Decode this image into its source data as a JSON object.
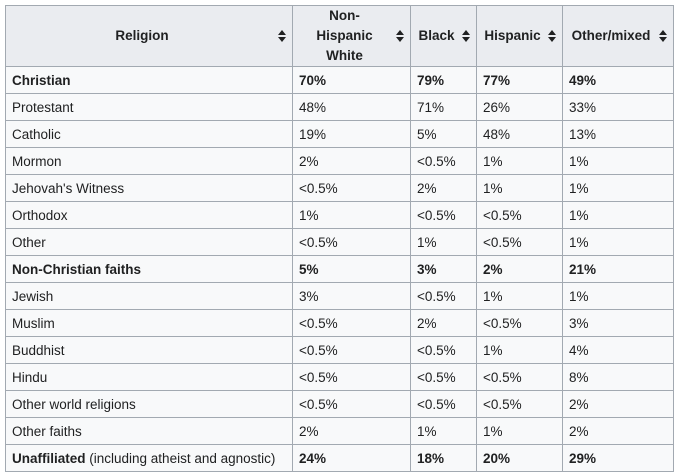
{
  "table": {
    "headers": [
      {
        "label": "Religion"
      },
      {
        "label": "Non-Hispanic White"
      },
      {
        "label": "Black"
      },
      {
        "label": "Hispanic"
      },
      {
        "label": "Other/mixed"
      }
    ],
    "rows": [
      {
        "religion": "Christian",
        "religion_note": "",
        "white": "70%",
        "black": "79%",
        "hispanic": "77%",
        "other": "49%",
        "bold": true
      },
      {
        "religion": "Protestant",
        "religion_note": "",
        "white": "48%",
        "black": "71%",
        "hispanic": "26%",
        "other": "33%",
        "bold": false
      },
      {
        "religion": "Catholic",
        "religion_note": "",
        "white": "19%",
        "black": "5%",
        "hispanic": "48%",
        "other": "13%",
        "bold": false
      },
      {
        "religion": "Mormon",
        "religion_note": "",
        "white": "2%",
        "black": "<0.5%",
        "hispanic": "1%",
        "other": "1%",
        "bold": false
      },
      {
        "religion": "Jehovah's Witness",
        "religion_note": "",
        "white": "<0.5%",
        "black": "2%",
        "hispanic": "1%",
        "other": "1%",
        "bold": false
      },
      {
        "religion": "Orthodox",
        "religion_note": "",
        "white": "1%",
        "black": "<0.5%",
        "hispanic": "<0.5%",
        "other": "1%",
        "bold": false
      },
      {
        "religion": "Other",
        "religion_note": "",
        "white": "<0.5%",
        "black": "1%",
        "hispanic": "<0.5%",
        "other": "1%",
        "bold": false
      },
      {
        "religion": "Non-Christian faiths",
        "religion_note": "",
        "white": "5%",
        "black": "3%",
        "hispanic": "2%",
        "other": "21%",
        "bold": true
      },
      {
        "religion": "Jewish",
        "religion_note": "",
        "white": "3%",
        "black": "<0.5%",
        "hispanic": "1%",
        "other": "1%",
        "bold": false
      },
      {
        "religion": "Muslim",
        "religion_note": "",
        "white": "<0.5%",
        "black": "2%",
        "hispanic": "<0.5%",
        "other": "3%",
        "bold": false
      },
      {
        "religion": "Buddhist",
        "religion_note": "",
        "white": "<0.5%",
        "black": "<0.5%",
        "hispanic": "1%",
        "other": "4%",
        "bold": false
      },
      {
        "religion": "Hindu",
        "religion_note": "",
        "white": "<0.5%",
        "black": "<0.5%",
        "hispanic": "<0.5%",
        "other": "8%",
        "bold": false
      },
      {
        "religion": "Other world religions",
        "religion_note": "",
        "white": "<0.5%",
        "black": "<0.5%",
        "hispanic": "<0.5%",
        "other": "2%",
        "bold": false
      },
      {
        "religion": "Other faiths",
        "religion_note": "",
        "white": "2%",
        "black": "1%",
        "hispanic": "1%",
        "other": "2%",
        "bold": false
      },
      {
        "religion": "Unaffiliated",
        "religion_note": " (including atheist and agnostic)",
        "white": "24%",
        "black": "18%",
        "hispanic": "20%",
        "other": "29%",
        "bold": true
      }
    ]
  },
  "icons": {
    "sort": "sort-up-down-icon"
  },
  "colors": {
    "header_bg": "#eaecf0",
    "cell_bg": "#f8f9fa",
    "border": "#a2a9b1",
    "text": "#202122"
  }
}
